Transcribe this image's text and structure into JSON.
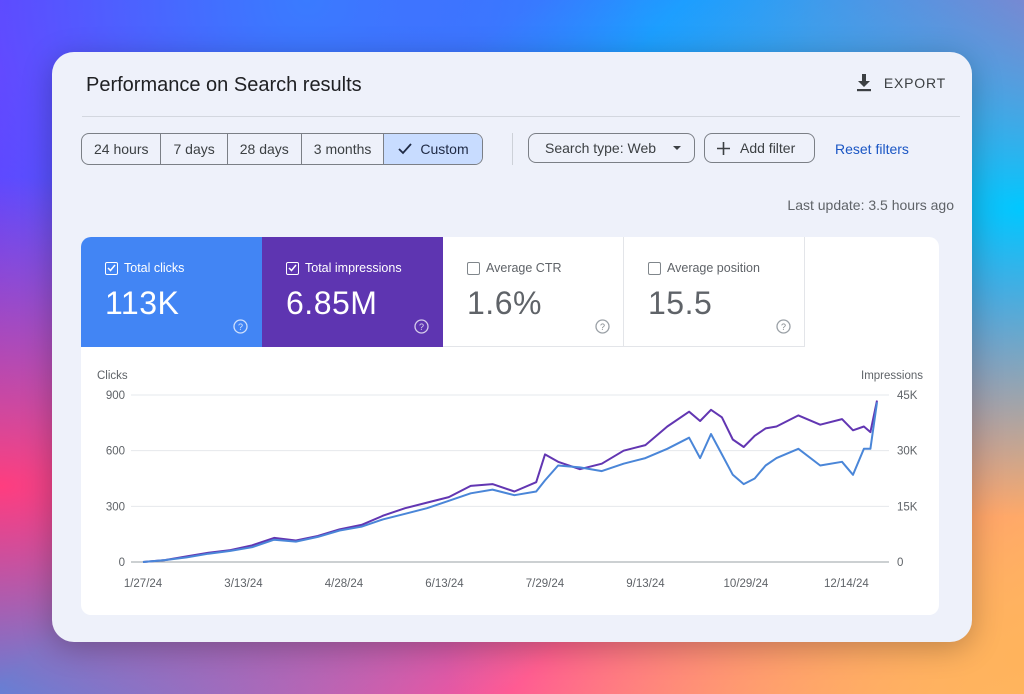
{
  "header": {
    "title": "Performance on Search results",
    "export_label": "EXPORT"
  },
  "date_range": {
    "options": [
      "24 hours",
      "7 days",
      "28 days",
      "3 months",
      "Custom"
    ],
    "selected": "Custom"
  },
  "filters": {
    "search_type": "Search type: Web",
    "add_filter": "Add filter",
    "reset": "Reset filters"
  },
  "last_update": "Last update: 3.5 hours ago",
  "metrics": [
    {
      "label": "Total clicks",
      "value": "113K",
      "checked": true,
      "color": "#4285f4"
    },
    {
      "label": "Total impressions",
      "value": "6.85M",
      "checked": true,
      "color": "#5e35b1"
    },
    {
      "label": "Average CTR",
      "value": "1.6%",
      "checked": false
    },
    {
      "label": "Average position",
      "value": "15.5",
      "checked": false
    }
  ],
  "chart_data": {
    "type": "line",
    "y_left": {
      "label": "Clicks",
      "ticks": [
        "900",
        "600",
        "300",
        "0"
      ],
      "range": [
        0,
        900
      ]
    },
    "y_right": {
      "label": "Impressions",
      "ticks": [
        "45K",
        "30K",
        "15K",
        "0"
      ],
      "range": [
        0,
        45000
      ]
    },
    "x_tick_labels": [
      "1/27/24",
      "3/13/24",
      "4/28/24",
      "6/13/24",
      "7/29/24",
      "9/13/24",
      "10/29/24",
      "12/14/24"
    ],
    "x_ticks_day_of_series": [
      0,
      46,
      92,
      138,
      184,
      230,
      276,
      322
    ],
    "x_day_range": [
      0,
      336
    ],
    "grid": true,
    "series": [
      {
        "name": "Clicks",
        "axis": "left",
        "color": "#4a86d8",
        "x": [
          0,
          10,
          20,
          30,
          40,
          50,
          60,
          70,
          80,
          90,
          100,
          110,
          120,
          130,
          140,
          150,
          160,
          170,
          180,
          184,
          190,
          200,
          210,
          220,
          230,
          240,
          250,
          255,
          260,
          265,
          270,
          275,
          280,
          285,
          290,
          300,
          310,
          320,
          325,
          330,
          333,
          336
        ],
        "y": [
          0,
          10,
          25,
          45,
          60,
          80,
          120,
          110,
          135,
          170,
          190,
          230,
          260,
          290,
          330,
          370,
          390,
          360,
          380,
          440,
          520,
          510,
          490,
          530,
          560,
          610,
          670,
          560,
          690,
          580,
          470,
          420,
          450,
          520,
          560,
          610,
          520,
          540,
          470,
          610,
          610,
          860
        ]
      },
      {
        "name": "Impressions",
        "axis": "right",
        "color": "#6236b2",
        "x": [
          0,
          10,
          20,
          30,
          40,
          50,
          60,
          70,
          80,
          90,
          100,
          110,
          120,
          130,
          140,
          150,
          160,
          170,
          180,
          184,
          190,
          200,
          210,
          220,
          230,
          240,
          250,
          255,
          260,
          265,
          270,
          275,
          280,
          285,
          290,
          300,
          310,
          320,
          325,
          330,
          333,
          336
        ],
        "y": [
          0,
          500,
          1500,
          2500,
          3200,
          4500,
          6500,
          5800,
          7000,
          8800,
          10000,
          12500,
          14500,
          16000,
          17500,
          20500,
          21000,
          19000,
          21500,
          29000,
          27000,
          25000,
          26500,
          30000,
          31500,
          36500,
          40500,
          38000,
          41000,
          39000,
          33000,
          31000,
          34000,
          36000,
          36500,
          39500,
          37000,
          38500,
          35500,
          36500,
          35000,
          43500
        ]
      }
    ]
  }
}
